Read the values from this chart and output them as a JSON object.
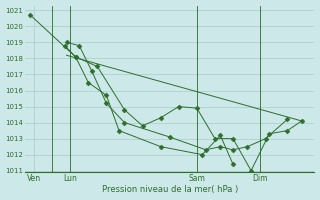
{
  "background_color": "#cce8e8",
  "grid_color": "#aacccc",
  "line_color": "#2d6e2d",
  "marker_color": "#2d6e2d",
  "text_color": "#2d6e2d",
  "xlabel": "Pression niveau de la mer( hPa )",
  "ylim": [
    1011,
    1021
  ],
  "yticks": [
    1011,
    1012,
    1013,
    1014,
    1015,
    1016,
    1017,
    1018,
    1019,
    1020,
    1021
  ],
  "xlim": [
    0,
    16
  ],
  "day_labels": [
    "Ven",
    "Lun",
    "Sam",
    "Dim"
  ],
  "day_positions": [
    0.5,
    2.5,
    9.5,
    13.0
  ],
  "vline_positions": [
    1.5,
    2.5,
    9.5,
    13.0
  ],
  "series": [
    {
      "x": [
        0.3,
        2.8,
        4.0,
        5.5,
        6.5,
        7.5,
        8.5,
        9.5,
        10.5,
        11.5,
        12.5,
        13.5,
        14.5,
        15.3
      ],
      "y": [
        1020.7,
        1018.1,
        1017.5,
        1014.8,
        1013.8,
        1014.3,
        1015.0,
        1014.9,
        1013.0,
        1013.0,
        1011.0,
        1013.3,
        1013.5,
        1014.1
      ],
      "style": "-",
      "marker": "D",
      "markersize": 2.5
    },
    {
      "x": [
        2.2,
        2.8,
        3.5,
        4.5,
        5.2,
        7.5,
        9.8,
        10.8,
        11.5
      ],
      "y": [
        1018.8,
        1018.1,
        1016.5,
        1015.7,
        1013.5,
        1012.5,
        1012.0,
        1013.2,
        1011.4
      ],
      "style": "-",
      "marker": "D",
      "markersize": 2.5
    },
    {
      "x": [
        2.3,
        3.0,
        3.7,
        4.5,
        5.5,
        8.0,
        10.0,
        10.8,
        11.5,
        12.3,
        13.3,
        14.5
      ],
      "y": [
        1019.0,
        1018.8,
        1017.2,
        1015.2,
        1014.0,
        1013.1,
        1012.3,
        1012.5,
        1012.3,
        1012.5,
        1013.0,
        1014.2
      ],
      "style": "-",
      "marker": "D",
      "markersize": 2.5
    },
    {
      "x": [
        2.3,
        15.3
      ],
      "y": [
        1018.2,
        1014.1
      ],
      "style": "-",
      "marker": null,
      "markersize": 0
    }
  ]
}
